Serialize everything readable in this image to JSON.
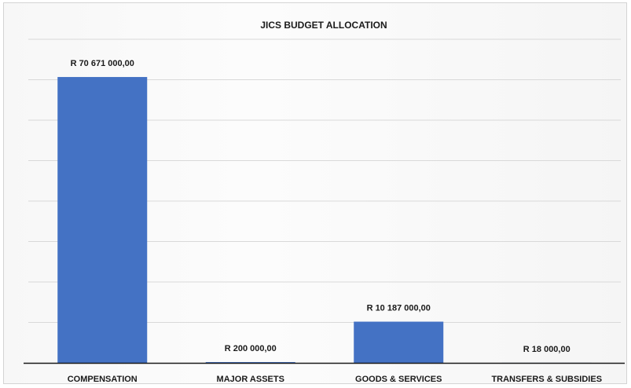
{
  "chart_data": {
    "type": "bar",
    "title": "JICS BUDGET ALLOCATION",
    "xlabel": "",
    "ylabel": "",
    "categories": [
      "COMPENSATION",
      "MAJOR ASSETS",
      "GOODS & SERVICES",
      "TRANSFERS & SUBSIDIES"
    ],
    "values": [
      70671000,
      200000,
      10187000,
      18000
    ],
    "data_labels": [
      "R 70 671 000,00",
      "R 200 000,00",
      "R 10 187 000,00",
      "R 18 000,00"
    ],
    "ylim": [
      0,
      80000000
    ],
    "grid": true,
    "legend": "none",
    "bar_color": "#4472c4"
  }
}
